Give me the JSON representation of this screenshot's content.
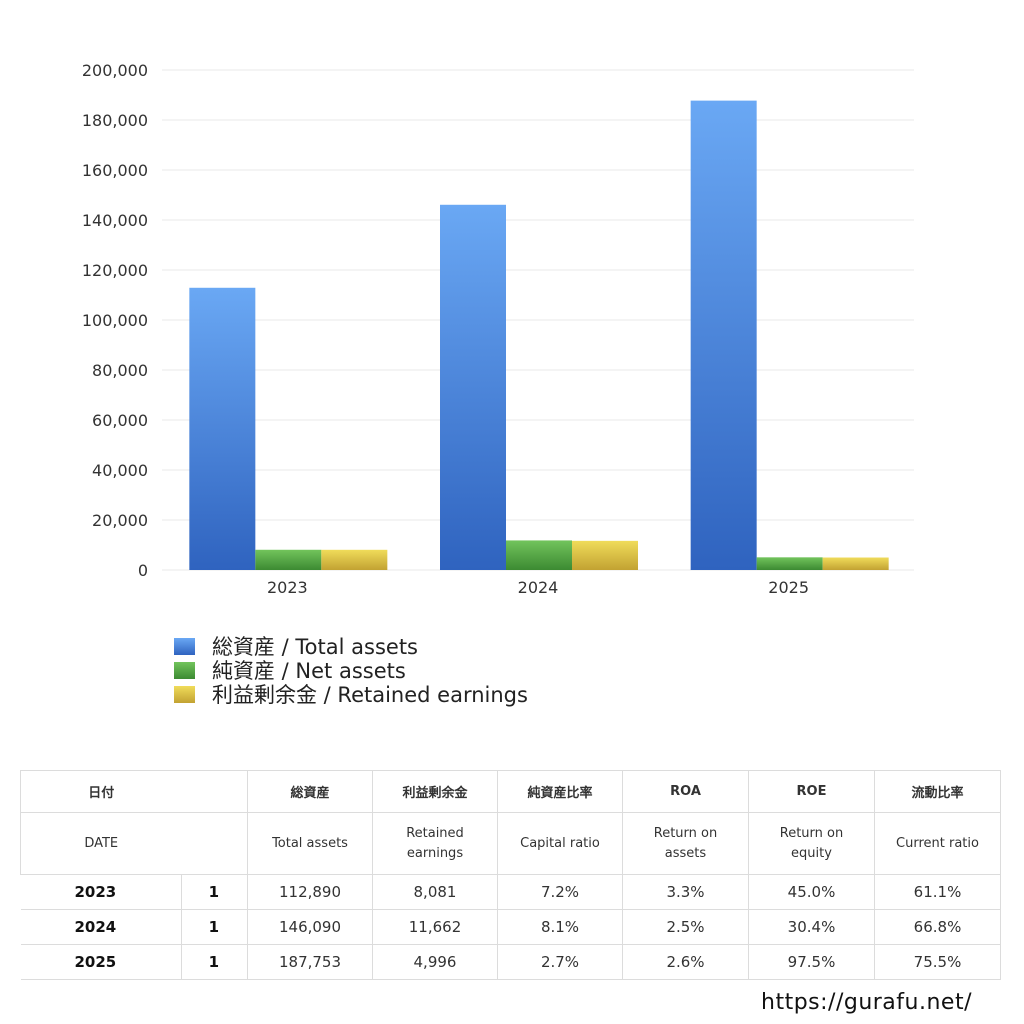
{
  "chart_data": {
    "type": "bar",
    "categories": [
      "2023",
      "2024",
      "2025"
    ],
    "series": [
      {
        "name": "総資産 / Total assets",
        "values": [
          112890,
          146090,
          187753
        ],
        "color": "#3d7fd8"
      },
      {
        "name": "純資産 / Net assets",
        "values": [
          8091,
          11829,
          5070
        ],
        "color": "#4a9e3e"
      },
      {
        "name": "利益剰余金 / Retained earnings",
        "values": [
          8081,
          11662,
          4996
        ],
        "color": "#d4b935"
      }
    ],
    "y_ticks": [
      "0",
      "20,000",
      "40,000",
      "60,000",
      "80,000",
      "100,000",
      "120,000",
      "140,000",
      "160,000",
      "180,000",
      "200,000"
    ],
    "ylim": [
      0,
      200000
    ],
    "grid": true,
    "legend_position": "bottom-left"
  },
  "legend": [
    {
      "label": "総資産 / Total assets",
      "color": "#3d7fd8"
    },
    {
      "label": "純資産 / Net assets",
      "color": "#4a9e3e"
    },
    {
      "label": "利益剰余金 / Retained earnings",
      "color": "#d4b935"
    }
  ],
  "table": {
    "header_jp": {
      "date": "日付",
      "total_assets": "総資産",
      "retained": "利益剰余金",
      "capital_ratio": "純資産比率",
      "roa": "ROA",
      "roe": "ROE",
      "current_ratio": "流動比率"
    },
    "header_en": {
      "date": "DATE",
      "total_assets": "Total assets",
      "retained": "Retained earnings",
      "capital_ratio": "Capital ratio",
      "roa": "Return on assets",
      "roe": "Return on equity",
      "current_ratio": "Current ratio"
    },
    "rows": [
      {
        "year": "2023",
        "unit": "1",
        "total_assets": "112,890",
        "retained": "8,081",
        "capital_ratio": "7.2%",
        "roa": "3.3%",
        "roe": "45.0%",
        "current_ratio": "61.1%"
      },
      {
        "year": "2024",
        "unit": "1",
        "total_assets": "146,090",
        "retained": "11,662",
        "capital_ratio": "8.1%",
        "roa": "2.5%",
        "roe": "30.4%",
        "current_ratio": "66.8%"
      },
      {
        "year": "2025",
        "unit": "1",
        "total_assets": "187,753",
        "retained": "4,996",
        "capital_ratio": "2.7%",
        "roa": "2.6%",
        "roe": "97.5%",
        "current_ratio": "75.5%"
      }
    ]
  },
  "site_url": "https://gurafu.net/"
}
